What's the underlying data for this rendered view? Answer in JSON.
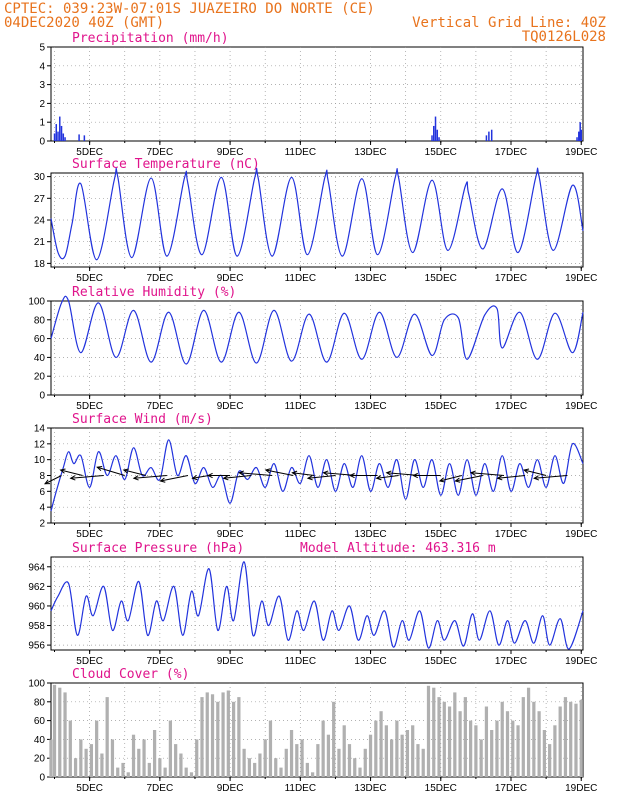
{
  "header": {
    "line1_left": "CPTEC:   039:23W-07:01S  JUAZEIRO DO NORTE (CE)",
    "line2_left": "04DEC2020 40Z (GMT)",
    "line2_right": "Vertical Grid Line: 40Z",
    "line3_right": "TQ0126L028"
  },
  "colors": {
    "header": "#e8731d",
    "panel_title": "#e0148c",
    "line": "#2233dd",
    "bars": "#b0b0b0",
    "wind_arrow": "#000000"
  },
  "chart_data": [
    {
      "id": "precip",
      "type": "bar",
      "title": "Precipitation (mm/h)",
      "ylim": [
        0,
        5
      ],
      "yticks": [
        0,
        1,
        2,
        3,
        4,
        5
      ],
      "color": "#2233dd",
      "x_unit": "day",
      "xlim": [
        3.9,
        19.05
      ],
      "xticks": [
        "5DEC",
        "7DEC",
        "9DEC",
        "11DEC",
        "13DEC",
        "15DEC",
        "17DEC",
        "19DEC"
      ],
      "x": [
        4.0,
        4.05,
        4.1,
        4.15,
        4.2,
        4.25,
        4.3,
        4.7,
        4.85,
        14.75,
        14.8,
        14.85,
        14.9,
        14.95,
        16.3,
        16.37,
        16.45,
        18.88,
        18.93,
        18.97,
        19.0
      ],
      "values": [
        0.4,
        0.9,
        0.5,
        1.3,
        0.8,
        0.4,
        0.2,
        0.35,
        0.3,
        0.3,
        0.8,
        1.3,
        0.6,
        0.2,
        0.3,
        0.5,
        0.6,
        0.2,
        0.5,
        1.0,
        0.6
      ]
    },
    {
      "id": "temp",
      "type": "line",
      "title": "Surface Temperature (nC)",
      "ylim": [
        17.5,
        30.5
      ],
      "yticks": [
        18,
        21,
        24,
        27,
        30
      ],
      "color": "#2233dd",
      "x_unit": "day",
      "xlim": [
        3.9,
        19.05
      ],
      "xticks": [
        "5DEC",
        "7DEC",
        "9DEC",
        "11DEC",
        "13DEC",
        "15DEC",
        "17DEC",
        "19DEC"
      ],
      "x": [
        3.9,
        4.1,
        4.3,
        4.5,
        4.75,
        5.2,
        5.7,
        5.8,
        6.2,
        6.75,
        7.2,
        7.7,
        7.8,
        8.2,
        8.75,
        9.2,
        9.7,
        9.8,
        10.2,
        10.75,
        11.2,
        11.7,
        11.8,
        12.2,
        12.75,
        13.2,
        13.7,
        13.8,
        14.2,
        14.75,
        15.2,
        15.7,
        15.8,
        16.2,
        16.75,
        17.2,
        17.7,
        17.8,
        18.2,
        18.75,
        19.05
      ],
      "values": [
        24.2,
        19.5,
        19.0,
        23.5,
        29.0,
        18.5,
        29.5,
        30.0,
        18.8,
        29.8,
        19.0,
        29.8,
        29.0,
        19.2,
        29.9,
        19.0,
        29.8,
        29.8,
        19.0,
        29.9,
        19.2,
        29.9,
        29.2,
        19.0,
        29.7,
        19.2,
        29.8,
        29.8,
        19.5,
        29.5,
        19.8,
        28.7,
        27.5,
        20.0,
        28.3,
        19.5,
        29.8,
        30.0,
        19.8,
        28.8,
        22.5
      ]
    },
    {
      "id": "rh",
      "type": "line",
      "title": "Relative Humidity (%)",
      "ylim": [
        0,
        100
      ],
      "yticks": [
        0,
        20,
        40,
        60,
        80,
        100
      ],
      "color": "#2233dd",
      "x_unit": "day",
      "xlim": [
        3.9,
        19.05
      ],
      "xticks": [
        "5DEC",
        "7DEC",
        "9DEC",
        "11DEC",
        "13DEC",
        "15DEC",
        "17DEC",
        "19DEC"
      ],
      "x": [
        3.9,
        4.2,
        4.4,
        4.75,
        5.25,
        5.75,
        6.25,
        6.75,
        7.25,
        7.75,
        8.25,
        8.75,
        9.25,
        9.75,
        10.25,
        10.75,
        11.25,
        11.75,
        12.25,
        12.75,
        13.25,
        13.75,
        14.25,
        14.75,
        15.1,
        15.5,
        15.75,
        16.25,
        16.6,
        16.75,
        17.25,
        17.75,
        18.25,
        18.75,
        19.05
      ],
      "values": [
        60,
        98,
        100,
        45,
        98,
        40,
        90,
        35,
        88,
        33,
        90,
        35,
        88,
        34,
        90,
        36,
        86,
        35,
        87,
        38,
        88,
        40,
        86,
        42,
        80,
        82,
        38,
        85,
        92,
        50,
        88,
        38,
        87,
        45,
        88
      ]
    },
    {
      "id": "wind",
      "type": "line",
      "title": "Surface Wind (m/s)",
      "ylim": [
        2,
        14
      ],
      "yticks": [
        2,
        4,
        6,
        8,
        10,
        12,
        14
      ],
      "color": "#2233dd",
      "x_unit": "day",
      "xlim": [
        3.9,
        19.05
      ],
      "xticks": [
        "5DEC",
        "7DEC",
        "9DEC",
        "11DEC",
        "13DEC",
        "15DEC",
        "17DEC",
        "19DEC"
      ],
      "x": [
        3.9,
        4.05,
        4.25,
        4.4,
        4.55,
        4.75,
        5.0,
        5.25,
        5.5,
        5.75,
        6.0,
        6.25,
        6.5,
        6.75,
        7.0,
        7.25,
        7.5,
        7.75,
        8.0,
        8.25,
        8.5,
        8.75,
        9.0,
        9.25,
        9.5,
        9.75,
        10.0,
        10.25,
        10.5,
        10.75,
        11.0,
        11.25,
        11.5,
        11.75,
        12.0,
        12.25,
        12.5,
        12.75,
        13.0,
        13.25,
        13.5,
        13.75,
        14.0,
        14.25,
        14.5,
        14.75,
        15.0,
        15.25,
        15.5,
        15.75,
        16.0,
        16.25,
        16.5,
        16.75,
        17.0,
        17.25,
        17.5,
        17.75,
        18.0,
        18.25,
        18.5,
        18.75,
        19.05
      ],
      "values": [
        3.5,
        6.0,
        9.0,
        11.0,
        9.5,
        10.5,
        6.5,
        11.0,
        8.0,
        10.5,
        7.5,
        11.5,
        8.0,
        9.0,
        7.5,
        12.5,
        8.0,
        10.5,
        7.0,
        9.0,
        6.5,
        8.0,
        4.5,
        8.5,
        7.5,
        9.0,
        6.5,
        9.5,
        6.0,
        9.0,
        7.0,
        10.5,
        6.5,
        10.0,
        6.0,
        9.5,
        6.5,
        10.5,
        6.0,
        9.5,
        6.5,
        10.0,
        5.0,
        10.0,
        6.5,
        10.0,
        5.5,
        9.5,
        5.5,
        10.0,
        5.5,
        9.5,
        6.0,
        10.5,
        6.0,
        9.5,
        6.5,
        10.0,
        6.5,
        10.5,
        7.0,
        12.0,
        9.5
      ],
      "arrows": {
        "x": [
          4.2,
          4.8,
          5.4,
          6.0,
          6.6,
          7.2,
          7.8,
          8.4,
          9.0,
          9.6,
          10.2,
          10.8,
          11.4,
          12.0,
          12.6,
          13.2,
          13.8,
          14.4,
          15.0,
          15.6,
          16.2,
          16.8,
          17.4,
          18.0,
          18.6
        ],
        "u": [
          -3,
          -4,
          -6,
          -5,
          -4,
          -6,
          -5,
          -3,
          -4,
          -5,
          -6,
          -5,
          -4,
          -5,
          -6,
          -5,
          -4,
          -6,
          -5,
          -4,
          -5,
          -6,
          -5,
          -4,
          -6
        ],
        "v": [
          -1.5,
          1.0,
          -0.5,
          1.5,
          1.0,
          -0.5,
          -1.0,
          -0.5,
          0.0,
          -0.5,
          0.5,
          1.0,
          0.5,
          -0.5,
          0.5,
          0.0,
          -0.5,
          0.5,
          0.0,
          -1.0,
          -1.0,
          0.5,
          -0.5,
          1.0,
          -0.5
        ]
      }
    },
    {
      "id": "pressure",
      "type": "line",
      "title": "Surface Pressure (hPa)",
      "annotation": "Model Altitude: 463.316 m",
      "ylim": [
        955.5,
        965
      ],
      "yticks": [
        956,
        958,
        960,
        962,
        964
      ],
      "color": "#2233dd",
      "x_unit": "day",
      "xlim": [
        3.9,
        19.05
      ],
      "xticks": [
        "5DEC",
        "7DEC",
        "9DEC",
        "11DEC",
        "13DEC",
        "15DEC",
        "17DEC",
        "19DEC"
      ],
      "x": [
        3.9,
        4.1,
        4.4,
        4.65,
        4.9,
        5.1,
        5.4,
        5.65,
        5.9,
        6.1,
        6.4,
        6.65,
        6.9,
        7.1,
        7.4,
        7.65,
        7.9,
        8.1,
        8.4,
        8.65,
        8.9,
        9.1,
        9.4,
        9.65,
        9.9,
        10.1,
        10.4,
        10.65,
        10.9,
        11.1,
        11.4,
        11.65,
        11.9,
        12.1,
        12.4,
        12.65,
        12.9,
        13.1,
        13.4,
        13.65,
        13.9,
        14.1,
        14.4,
        14.65,
        14.9,
        15.1,
        15.4,
        15.65,
        15.9,
        16.1,
        16.4,
        16.65,
        16.9,
        17.1,
        17.4,
        17.65,
        17.9,
        18.1,
        18.4,
        18.65,
        19.05
      ],
      "values": [
        959.5,
        961.0,
        962.3,
        957.0,
        961.0,
        959.0,
        962.0,
        957.5,
        960.5,
        958.5,
        962.5,
        957.0,
        960.5,
        958.5,
        962.0,
        957.0,
        961.5,
        959.0,
        963.8,
        957.5,
        962.0,
        958.5,
        964.5,
        957.0,
        960.5,
        958.0,
        961.0,
        956.5,
        959.5,
        957.5,
        960.5,
        956.5,
        959.5,
        957.5,
        960.0,
        956.5,
        959.0,
        957.0,
        959.5,
        955.8,
        958.5,
        956.5,
        959.5,
        955.7,
        958.5,
        956.5,
        958.5,
        955.9,
        959.2,
        956.5,
        959.5,
        956.0,
        958.5,
        956.2,
        958.5,
        956.2,
        959.0,
        956.0,
        958.7,
        955.6,
        959.5
      ]
    },
    {
      "id": "cloud",
      "type": "bar",
      "title": "Cloud Cover (%)",
      "ylim": [
        0,
        100
      ],
      "yticks": [
        0,
        20,
        40,
        60,
        80,
        100
      ],
      "color": "#b0b0b0",
      "x_unit": "day",
      "xlim": [
        3.9,
        19.05
      ],
      "xticks": [
        "5DEC",
        "7DEC",
        "9DEC",
        "11DEC",
        "13DEC",
        "15DEC",
        "17DEC",
        "19DEC"
      ],
      "x": [
        3.9,
        4.0,
        4.15,
        4.3,
        4.45,
        4.6,
        4.75,
        4.9,
        5.05,
        5.2,
        5.35,
        5.5,
        5.65,
        5.8,
        5.95,
        6.1,
        6.25,
        6.4,
        6.55,
        6.7,
        6.85,
        7.0,
        7.15,
        7.3,
        7.45,
        7.6,
        7.75,
        7.9,
        8.05,
        8.2,
        8.35,
        8.5,
        8.65,
        8.8,
        8.95,
        9.1,
        9.25,
        9.4,
        9.55,
        9.7,
        9.85,
        10.0,
        10.15,
        10.3,
        10.45,
        10.6,
        10.75,
        10.9,
        11.05,
        11.2,
        11.35,
        11.5,
        11.65,
        11.8,
        11.95,
        12.1,
        12.25,
        12.4,
        12.55,
        12.7,
        12.85,
        13.0,
        13.15,
        13.3,
        13.45,
        13.6,
        13.75,
        13.9,
        14.05,
        14.2,
        14.35,
        14.5,
        14.65,
        14.8,
        14.95,
        15.1,
        15.25,
        15.4,
        15.55,
        15.7,
        15.85,
        16.0,
        16.15,
        16.3,
        16.45,
        16.6,
        16.75,
        16.9,
        17.05,
        17.2,
        17.35,
        17.5,
        17.65,
        17.8,
        17.95,
        18.1,
        18.25,
        18.4,
        18.55,
        18.7,
        18.85,
        19.0
      ],
      "values": [
        40,
        98,
        95,
        90,
        60,
        20,
        40,
        30,
        35,
        60,
        25,
        85,
        40,
        10,
        15,
        5,
        45,
        30,
        40,
        15,
        50,
        20,
        10,
        60,
        35,
        25,
        10,
        5,
        40,
        85,
        90,
        88,
        80,
        90,
        92,
        80,
        85,
        30,
        20,
        15,
        25,
        40,
        60,
        20,
        10,
        30,
        50,
        35,
        40,
        15,
        5,
        35,
        60,
        45,
        80,
        30,
        55,
        35,
        20,
        10,
        30,
        45,
        60,
        70,
        55,
        40,
        60,
        45,
        50,
        55,
        35,
        30,
        97,
        95,
        85,
        80,
        75,
        90,
        70,
        85,
        60,
        55,
        40,
        75,
        50,
        60,
        80,
        70,
        60,
        55,
        85,
        95,
        80,
        70,
        50,
        35,
        55,
        75,
        85,
        80,
        78,
        82
      ]
    }
  ]
}
